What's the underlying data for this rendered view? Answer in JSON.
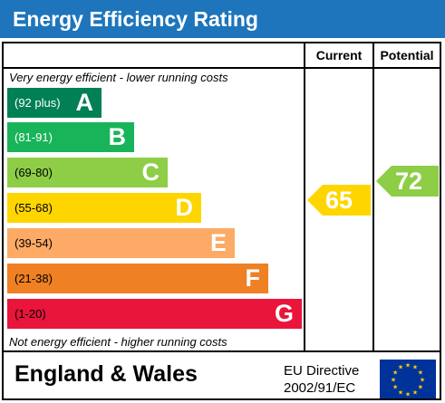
{
  "header": {
    "title": "Energy Efficiency Rating"
  },
  "columns": {
    "current": "Current",
    "potential": "Potential"
  },
  "captions": {
    "top": "Very energy efficient - lower running costs",
    "bottom": "Not energy efficient - higher running costs"
  },
  "bands": [
    {
      "range": "(92 plus)",
      "letter": "A",
      "color": "#008054",
      "range_color": "#ffffff"
    },
    {
      "range": "(81-91)",
      "letter": "B",
      "color": "#19b459",
      "range_color": "#ffffff"
    },
    {
      "range": "(69-80)",
      "letter": "C",
      "color": "#8dce46",
      "range_color": "#000000"
    },
    {
      "range": "(55-68)",
      "letter": "D",
      "color": "#ffd500",
      "range_color": "#000000"
    },
    {
      "range": "(39-54)",
      "letter": "E",
      "color": "#fcaa65",
      "range_color": "#000000"
    },
    {
      "range": "(21-38)",
      "letter": "F",
      "color": "#ef8023",
      "range_color": "#000000"
    },
    {
      "range": "(1-20)",
      "letter": "G",
      "color": "#e9153b",
      "range_color": "#000000"
    }
  ],
  "ratings": {
    "current": {
      "value": "65",
      "band": "D",
      "color": "#ffd500"
    },
    "potential": {
      "value": "72",
      "band": "C",
      "color": "#8dce46"
    }
  },
  "footer": {
    "country": "England & Wales",
    "directive_line1": "EU Directive",
    "directive_line2": "2002/91/EC"
  },
  "flag": {
    "icon": "eu-flag-icon",
    "background": "#003399",
    "star_color": "#ffcc00"
  }
}
